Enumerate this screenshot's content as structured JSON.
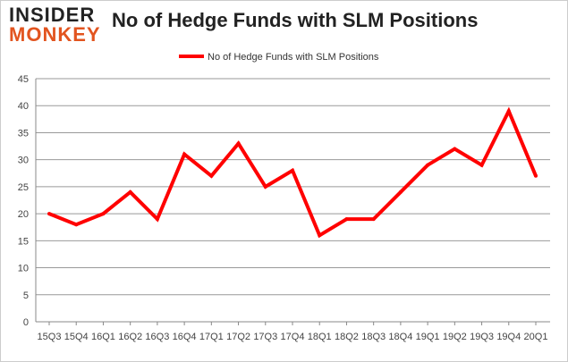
{
  "logo": {
    "line1": "INSIDER",
    "line2": "MONKEY"
  },
  "chart_data": {
    "type": "line",
    "title": "No of Hedge Funds with SLM Positions",
    "categories": [
      "15Q3",
      "15Q4",
      "16Q1",
      "16Q2",
      "16Q3",
      "16Q4",
      "17Q1",
      "17Q2",
      "17Q3",
      "17Q4",
      "18Q1",
      "18Q2",
      "18Q3",
      "18Q4",
      "19Q1",
      "19Q2",
      "19Q3",
      "19Q4",
      "20Q1"
    ],
    "series": [
      {
        "name": "No of Hedge Funds with SLM Positions",
        "color": "#ff0000",
        "values": [
          20,
          18,
          20,
          24,
          19,
          31,
          27,
          33,
          25,
          28,
          16,
          19,
          19,
          24,
          29,
          32,
          29,
          39,
          27
        ]
      }
    ],
    "ylim": [
      0,
      45
    ],
    "yticks": [
      0,
      5,
      10,
      15,
      20,
      25,
      30,
      35,
      40,
      45
    ],
    "grid": true,
    "legend": "top-center"
  }
}
